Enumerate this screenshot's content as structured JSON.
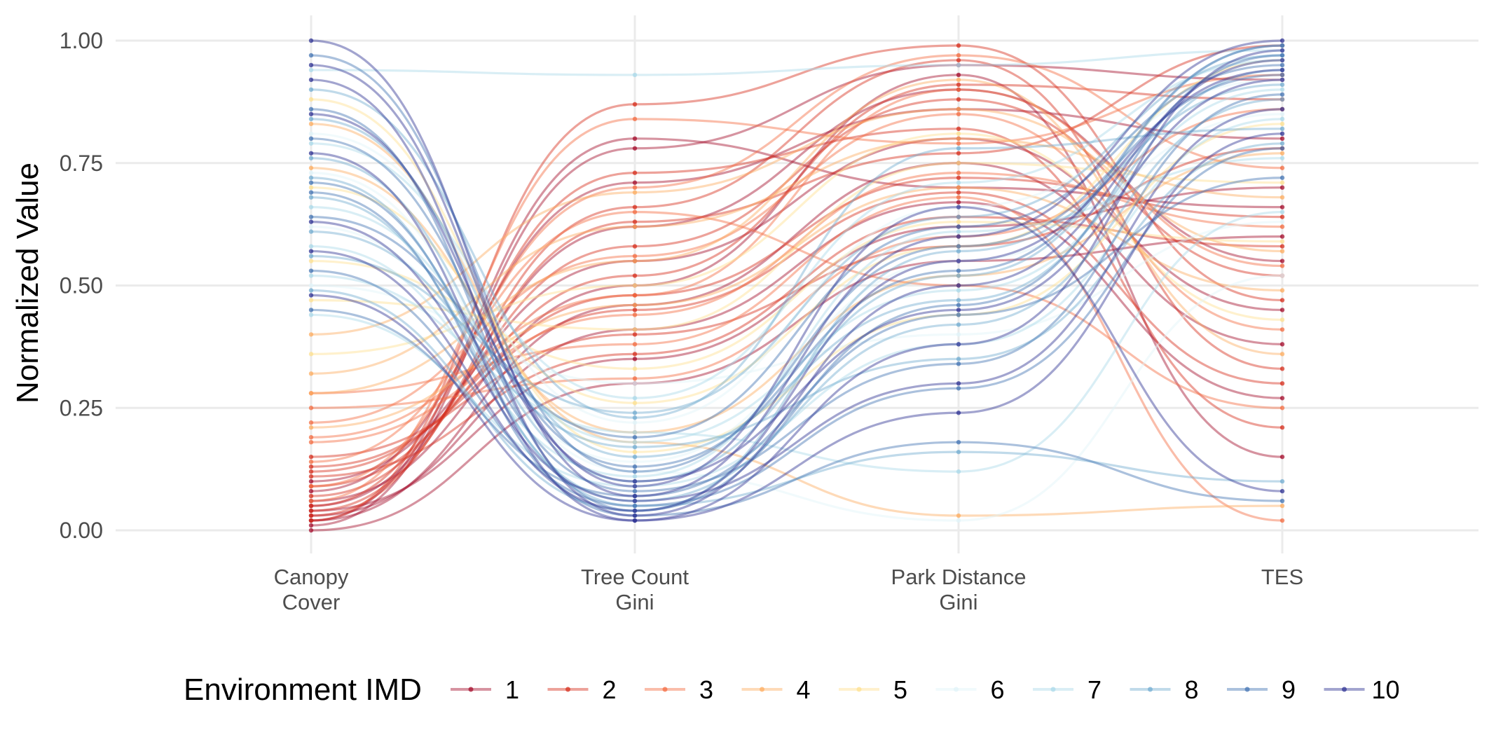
{
  "chart_data": {
    "type": "parallel_coordinates",
    "ylabel": "Normalized Value",
    "axes": [
      "Canopy\nCover",
      "Tree Count\nGini",
      "Park Distance\nGini",
      "TES"
    ],
    "ylim": [
      0,
      1
    ],
    "yticks": [
      "0.00",
      "0.25",
      "0.50",
      "0.75",
      "1.00"
    ],
    "ytick_values": [
      0,
      0.25,
      0.5,
      0.75,
      1
    ],
    "grid": true,
    "legend": {
      "title": "Environment IMD",
      "placement": "bottom",
      "levels": [
        "1",
        "2",
        "3",
        "4",
        "5",
        "6",
        "7",
        "8",
        "9",
        "10"
      ],
      "colors": [
        "#a50f2d",
        "#d7301f",
        "#f46d43",
        "#fdae61",
        "#fee090",
        "#e0f3f8",
        "#abd9e9",
        "#74add1",
        "#4575b4",
        "#313695"
      ]
    },
    "series": [
      {
        "name": "1",
        "values": [
          [
            0.02,
            0.46,
            0.75,
            0.38
          ],
          [
            0.05,
            0.62,
            0.9,
            0.55
          ],
          [
            0.0,
            0.3,
            0.55,
            0.6
          ],
          [
            0.08,
            0.71,
            0.86,
            0.8
          ],
          [
            0.03,
            0.41,
            0.67,
            0.27
          ],
          [
            0.01,
            0.78,
            0.95,
            0.92
          ],
          [
            0.1,
            0.55,
            0.8,
            0.45
          ],
          [
            0.04,
            0.35,
            0.62,
            0.7
          ],
          [
            0.06,
            0.5,
            0.93,
            0.15
          ],
          [
            0.02,
            0.8,
            0.7,
            0.66
          ]
        ]
      },
      {
        "name": "2",
        "values": [
          [
            0.07,
            0.58,
            0.88,
            0.52
          ],
          [
            0.12,
            0.48,
            0.72,
            0.64
          ],
          [
            0.03,
            0.66,
            0.96,
            0.33
          ],
          [
            0.15,
            0.4,
            0.58,
            0.78
          ],
          [
            0.05,
            0.73,
            0.82,
            0.21
          ],
          [
            0.09,
            0.52,
            0.91,
            0.88
          ],
          [
            0.02,
            0.87,
            0.99,
            0.47
          ],
          [
            0.11,
            0.36,
            0.64,
            0.58
          ],
          [
            0.04,
            0.63,
            0.77,
            0.99
          ],
          [
            0.13,
            0.45,
            0.69,
            0.3
          ]
        ]
      },
      {
        "name": "3",
        "values": [
          [
            0.18,
            0.44,
            0.73,
            0.62
          ],
          [
            0.22,
            0.56,
            0.85,
            0.41
          ],
          [
            0.09,
            0.7,
            0.97,
            0.74
          ],
          [
            0.25,
            0.31,
            0.6,
            0.86
          ],
          [
            0.14,
            0.65,
            0.5,
            0.25
          ],
          [
            0.19,
            0.48,
            0.9,
            0.54
          ],
          [
            0.06,
            0.84,
            0.79,
            0.93
          ],
          [
            0.28,
            0.38,
            0.68,
            0.02
          ]
        ]
      },
      {
        "name": "4",
        "values": [
          [
            0.32,
            0.62,
            0.8,
            0.68
          ],
          [
            0.74,
            0.2,
            0.52,
            0.77
          ],
          [
            0.28,
            0.55,
            0.92,
            0.36
          ],
          [
            0.83,
            0.18,
            0.03,
            0.05
          ],
          [
            0.4,
            0.69,
            0.86,
            0.57
          ],
          [
            0.21,
            0.46,
            0.7,
            0.49
          ]
        ]
      },
      {
        "name": "5",
        "values": [
          [
            0.88,
            0.16,
            0.44,
            0.83
          ],
          [
            0.55,
            0.33,
            0.63,
            0.59
          ],
          [
            0.36,
            0.5,
            0.81,
            0.43
          ],
          [
            0.7,
            0.26,
            0.58,
            0.96
          ],
          [
            0.47,
            0.41,
            0.75,
            0.71
          ]
        ]
      },
      {
        "name": "6",
        "values": [
          [
            0.62,
            0.14,
            0.55,
            0.85
          ],
          [
            0.81,
            0.22,
            0.66,
            0.92
          ],
          [
            0.5,
            0.3,
            0.4,
            0.63
          ],
          [
            0.73,
            0.12,
            0.02,
            0.52
          ]
        ]
      },
      {
        "name": "7",
        "values": [
          [
            0.94,
            0.93,
            0.95,
            0.98
          ],
          [
            0.66,
            0.18,
            0.49,
            0.9
          ],
          [
            0.58,
            0.11,
            0.61,
            0.76
          ],
          [
            0.79,
            0.27,
            0.71,
            0.96
          ],
          [
            0.44,
            0.09,
            0.38,
            0.84
          ],
          [
            0.52,
            0.2,
            0.12,
            0.65
          ]
        ]
      },
      {
        "name": "8",
        "values": [
          [
            0.84,
            0.15,
            0.47,
            0.94
          ],
          [
            0.68,
            0.06,
            0.42,
            0.88
          ],
          [
            0.56,
            0.24,
            0.64,
            0.97
          ],
          [
            0.76,
            0.1,
            0.52,
            0.99
          ],
          [
            0.61,
            0.17,
            0.35,
            0.79
          ],
          [
            0.49,
            0.04,
            0.57,
            0.91
          ],
          [
            0.9,
            0.23,
            0.78,
            0.82
          ],
          [
            0.72,
            0.05,
            0.16,
            0.1
          ]
        ]
      },
      {
        "name": "9",
        "values": [
          [
            0.97,
            0.12,
            0.58,
            0.93
          ],
          [
            0.86,
            0.04,
            0.46,
            0.97
          ],
          [
            0.71,
            0.08,
            0.34,
            0.89
          ],
          [
            0.64,
            0.19,
            0.62,
            0.95
          ],
          [
            0.53,
            0.05,
            0.29,
            0.78
          ],
          [
            0.8,
            0.13,
            0.53,
            0.99
          ],
          [
            0.45,
            0.07,
            0.44,
            0.72
          ],
          [
            0.69,
            0.03,
            0.18,
            0.06
          ]
        ]
      },
      {
        "name": "10",
        "values": [
          [
            1.0,
            0.07,
            0.6,
            1.0
          ],
          [
            0.92,
            0.03,
            0.5,
            0.96
          ],
          [
            0.85,
            0.1,
            0.45,
            0.92
          ],
          [
            0.77,
            0.02,
            0.38,
            0.98
          ],
          [
            0.63,
            0.06,
            0.3,
            0.86
          ],
          [
            0.57,
            0.04,
            0.55,
            0.94
          ],
          [
            0.48,
            0.02,
            0.24,
            0.81
          ],
          [
            0.95,
            0.09,
            0.66,
            0.08
          ]
        ]
      }
    ]
  }
}
